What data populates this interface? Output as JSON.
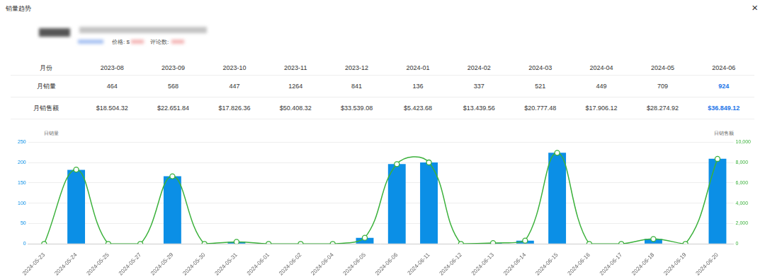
{
  "header": {
    "title": "销量趋势",
    "close": "×"
  },
  "product": {
    "price_label": "价格: $",
    "reviews_label": "评论数:"
  },
  "table": {
    "rows": [
      [
        "月份",
        "2023-08",
        "2023-09",
        "2023-10",
        "2023-11",
        "2023-12",
        "2024-01",
        "2024-02",
        "2024-03",
        "2024-04",
        "2024-05",
        "2024-06"
      ],
      [
        "月销量",
        464,
        568,
        447,
        1264,
        841,
        136,
        337,
        521,
        449,
        709,
        924
      ],
      [
        "月销售额",
        "$18.504.32",
        "$22.651.84",
        "$17.826.36",
        "$50.408.32",
        "$33.539.08",
        "$5.423.68",
        "$13.439.56",
        "$20.777.48",
        "$17.906.12",
        "$28.274.92",
        "$36.849.12"
      ]
    ]
  },
  "chart_data": {
    "type": "bar",
    "y_label": "日销量",
    "y2_label": "日销售额",
    "categories": [
      "2024-05-23",
      "2024-05-24",
      "2024-05-25",
      "2024-05-27",
      "2024-05-29",
      "2024-05-30",
      "2024-05-31",
      "2024-06-01",
      "2024-06-02",
      "2024-06-04",
      "2024-06-05",
      "2024-06-06",
      "2024-06-11",
      "2024-06-12",
      "2024-06-13",
      "2024-06-14",
      "2024-06-15",
      "2024-06-16",
      "2024-06-17",
      "2024-06-18",
      "2024-06-19",
      "2024-06-20"
    ],
    "series": [
      {
        "type": "bar",
        "color": "#0b8fe6",
        "values": [
          0,
          182,
          0,
          0,
          166,
          0,
          5,
          0,
          0,
          0,
          15,
          196,
          200,
          0,
          2,
          8,
          224,
          0,
          0,
          12,
          0,
          209
        ]
      },
      {
        "type": "line",
        "axis": "y2",
        "color": "#3bb13b",
        "marker": "circle",
        "values": [
          0,
          7300,
          0,
          0,
          6640,
          0,
          200,
          0,
          0,
          0,
          600,
          7840,
          8000,
          0,
          80,
          320,
          8950,
          0,
          0,
          480,
          0,
          8350
        ]
      }
    ],
    "ylim": [
      0,
      250
    ],
    "yticks": [
      0,
      50,
      100,
      150,
      200,
      250
    ],
    "y2lim": [
      0,
      10000
    ],
    "y2ticks": [
      0,
      {
        "value": 2000,
        "label": "2,000"
      },
      {
        "value": 4000,
        "label": "4,000"
      },
      {
        "value": 6000,
        "label": "6,000"
      },
      {
        "value": 8000,
        "label": "8,000"
      },
      {
        "value": 10000,
        "label": "10,000"
      }
    ],
    "grid": true
  }
}
